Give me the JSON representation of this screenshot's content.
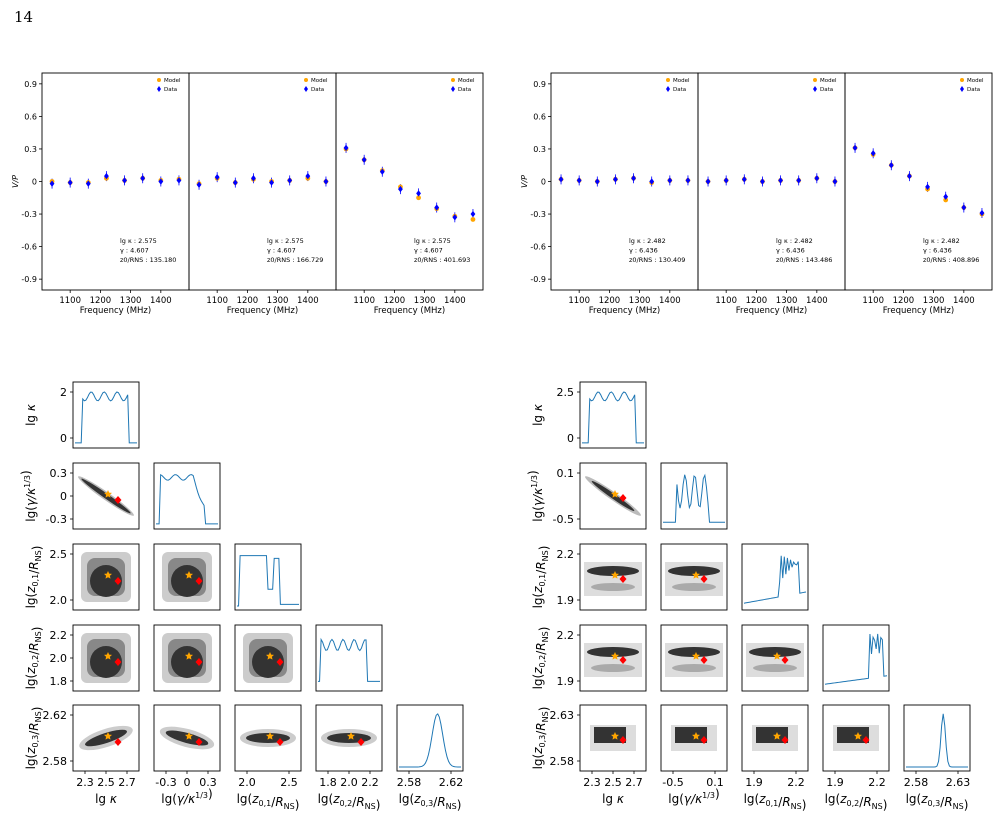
{
  "page_number": "14",
  "colors": {
    "model": "#ffa500",
    "data": "#0000ff",
    "best": "#ff0000",
    "line": "#1f77b4"
  },
  "chart_data": [
    {
      "type": "scatter",
      "figure": "left-vp",
      "ylabel": "V/P",
      "xlabel": "Frequency (MHz)",
      "ylim": [
        -1.0,
        1.0
      ],
      "yticks": [
        "0.9",
        "0.6",
        "0.3",
        "0",
        "-0.3",
        "-0.6",
        "-0.9"
      ],
      "legend": {
        "model": "Model",
        "data": "Data",
        "position": "top-right"
      },
      "panels": [
        {
          "xticks": [
            "1100",
            "1200",
            "1300",
            "1400"
          ],
          "annotation": [
            "lg κ : 2.575",
            "γ : 4.607",
            "z0/RNS : 135.180"
          ],
          "x": [
            1040,
            1100,
            1160,
            1220,
            1280,
            1340,
            1400,
            1460
          ],
          "model": [
            0.0,
            -0.01,
            -0.01,
            0.03,
            0.01,
            0.03,
            0.01,
            0.02
          ],
          "data": [
            -0.02,
            -0.01,
            -0.02,
            0.05,
            0.01,
            0.03,
            0.0,
            0.01
          ]
        },
        {
          "xticks": [
            "1100",
            "1200",
            "1300",
            "1400"
          ],
          "annotation": [
            "lg κ : 2.575",
            "γ : 4.607",
            "z0/RNS : 166.729"
          ],
          "x": [
            1040,
            1100,
            1160,
            1220,
            1280,
            1340,
            1400,
            1460
          ],
          "model": [
            -0.02,
            0.03,
            -0.01,
            0.02,
            0.0,
            0.01,
            0.03,
            0.0
          ],
          "data": [
            -0.03,
            0.04,
            -0.01,
            0.03,
            -0.01,
            0.01,
            0.05,
            0.0
          ]
        },
        {
          "xticks": [
            "1100",
            "1200",
            "1300",
            "1400"
          ],
          "annotation": [
            "lg κ : 2.575",
            "γ : 4.607",
            "z0/RNS : 401.693"
          ],
          "x": [
            1040,
            1100,
            1160,
            1220,
            1280,
            1340,
            1400,
            1460
          ],
          "model": [
            0.3,
            0.2,
            0.1,
            -0.05,
            -0.15,
            -0.25,
            -0.32,
            -0.35
          ],
          "data": [
            0.31,
            0.2,
            0.09,
            -0.07,
            -0.11,
            -0.24,
            -0.33,
            -0.3
          ]
        }
      ]
    },
    {
      "type": "scatter",
      "figure": "right-vp",
      "ylabel": "V/P",
      "xlabel": "Frequency (MHz)",
      "ylim": [
        -1.0,
        1.0
      ],
      "yticks": [
        "0.9",
        "0.6",
        "0.3",
        "0",
        "-0.3",
        "-0.6",
        "-0.9"
      ],
      "legend": {
        "model": "Model",
        "data": "Data",
        "position": "top-right"
      },
      "panels": [
        {
          "xticks": [
            "1100",
            "1200",
            "1300",
            "1400"
          ],
          "annotation": [
            "lg κ : 2.482",
            "γ : 6.436",
            "z0/RNS : 130.409"
          ],
          "x": [
            1040,
            1100,
            1160,
            1220,
            1280,
            1340,
            1400,
            1460
          ],
          "model": [
            0.02,
            0.01,
            0.0,
            0.02,
            0.03,
            -0.01,
            0.01,
            0.01
          ],
          "data": [
            0.02,
            0.01,
            0.0,
            0.02,
            0.03,
            0.0,
            0.01,
            0.01
          ]
        },
        {
          "xticks": [
            "1100",
            "1200",
            "1300",
            "1400"
          ],
          "annotation": [
            "lg κ : 2.482",
            "γ : 6.436",
            "z0/RNS : 143.486"
          ],
          "x": [
            1040,
            1100,
            1160,
            1220,
            1280,
            1340,
            1400,
            1460
          ],
          "model": [
            0.0,
            0.01,
            0.02,
            0.0,
            0.01,
            0.01,
            0.03,
            0.0
          ],
          "data": [
            0.0,
            0.01,
            0.02,
            0.0,
            0.01,
            0.01,
            0.03,
            0.0
          ]
        },
        {
          "xticks": [
            "1100",
            "1200",
            "1300",
            "1400"
          ],
          "annotation": [
            "lg κ : 2.482",
            "γ : 6.436",
            "z0/RNS : 408.896"
          ],
          "x": [
            1040,
            1100,
            1160,
            1220,
            1280,
            1340,
            1400,
            1460
          ],
          "model": [
            0.31,
            0.25,
            0.15,
            0.05,
            -0.07,
            -0.17,
            -0.24,
            -0.3
          ],
          "data": [
            0.31,
            0.26,
            0.15,
            0.05,
            -0.05,
            -0.14,
            -0.24,
            -0.29
          ]
        }
      ]
    },
    {
      "type": "heatmap",
      "figure": "left-corner",
      "row_labels": [
        "lg κ",
        "lg(γ/κ1/3)",
        "lg(z0,1/RNS)",
        "lg(z0,2/RNS)",
        "lg(z0,3/RNS)"
      ],
      "col_labels": [
        "lg κ",
        "lg(γ/κ1/3)",
        "lg(z0,1/RNS)",
        "lg(z0,2/RNS)",
        "lg(z0,3/RNS)"
      ],
      "xticks": [
        [
          "2.3",
          "2.5",
          "2.7"
        ],
        [
          "-0.3",
          "0",
          "0.3"
        ],
        [
          "2.0",
          "2.5"
        ],
        [
          "1.8",
          "2.0",
          "2.2"
        ],
        [
          "2.58",
          "2.62"
        ]
      ],
      "yticks": [
        [
          "2",
          "0"
        ],
        [
          "0.3",
          "0",
          "-0.3"
        ],
        [
          "2.5",
          "2.0"
        ],
        [
          "2.2",
          "2.0",
          "1.8"
        ],
        [
          "2.62",
          "2.58"
        ]
      ]
    },
    {
      "type": "heatmap",
      "figure": "right-corner",
      "row_labels": [
        "lg κ",
        "lg(γ/κ1/3)",
        "lg(z0,1/RNS)",
        "lg(z0,2/RNS)",
        "lg(z0,3/RNS)"
      ],
      "col_labels": [
        "lg κ",
        "lg(γ/κ1/3)",
        "lg(z0,1/RNS)",
        "lg(z0,2/RNS)",
        "lg(z0,3/RNS)"
      ],
      "xticks": [
        [
          "2.3",
          "2.5",
          "2.7"
        ],
        [
          "-0.5",
          "0.1"
        ],
        [
          "1.9",
          "2.2"
        ],
        [
          "1.9",
          "2.2"
        ],
        [
          "2.58",
          "2.63"
        ]
      ],
      "yticks": [
        [
          "2.5",
          "0"
        ],
        [
          "0.1",
          "-0.5"
        ],
        [
          "2.2",
          "1.9"
        ],
        [
          "2.2",
          "1.9"
        ],
        [
          "2.63",
          "2.58"
        ]
      ]
    }
  ]
}
